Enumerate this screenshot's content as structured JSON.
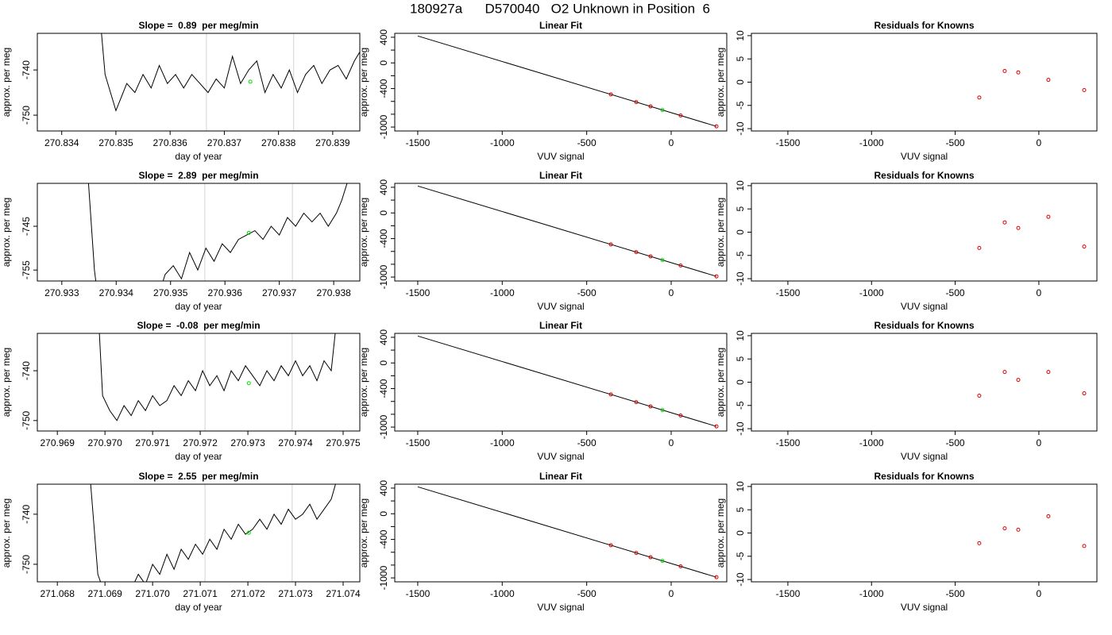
{
  "title": "180927a      D570040   O2 Unknown in Position  6",
  "chart_data": [
    {
      "type": "line",
      "title": "Slope =  0.89  per meg/min",
      "xlabel": "day of year",
      "ylabel": "approx. per meg",
      "xlim": [
        270.83355,
        270.8395
      ],
      "ylim": [
        -753.5,
        -731.9
      ],
      "xticks": [
        270.834,
        270.835,
        270.836,
        270.837,
        270.838,
        270.839
      ],
      "yticks": [
        -740,
        -750
      ],
      "vlines": [
        270.83667,
        270.83828
      ],
      "vline_color": "#d3d3d3",
      "series": [
        {
          "kind": "line",
          "color": "#000000",
          "x": [
            270.83472,
            270.8348,
            270.8349,
            270.835,
            270.8351,
            270.8352,
            270.83535,
            270.8355,
            270.83565,
            270.8358,
            270.83595,
            270.8361,
            270.83625,
            270.8364,
            270.83655,
            270.8367,
            270.83685,
            270.837,
            270.83715,
            270.8373,
            270.83745,
            270.8376,
            270.83775,
            270.8379,
            270.83805,
            270.8382,
            270.83835,
            270.8385,
            270.83865,
            270.8388,
            270.83895,
            270.8391,
            270.83925,
            270.8394,
            270.83955,
            270.83965
          ],
          "values": [
            -730,
            -741,
            -745,
            -749,
            -746,
            -743,
            -745,
            -741,
            -744,
            -739,
            -743,
            -741,
            -744,
            -741,
            -743,
            -745,
            -742,
            -744,
            -737,
            -743,
            -740,
            -738,
            -745,
            -741,
            -744,
            -740,
            -745,
            -741,
            -739,
            -743,
            -740,
            -739,
            -742,
            -738,
            -735,
            -728
          ]
        },
        {
          "kind": "points",
          "color": "#00dd00",
          "x": [
            270.83748
          ],
          "values": [
            -742.6
          ]
        }
      ]
    },
    {
      "type": "scatter",
      "title": "Linear Fit",
      "xlabel": "VUV signal",
      "ylabel": "approx. per meg",
      "xlim": [
        -1636,
        329
      ],
      "ylim": [
        -1061,
        461
      ],
      "xticks": [
        -1500,
        -1000,
        -500,
        0
      ],
      "yticks": [
        400,
        0,
        -400,
        -1000
      ],
      "yminor": [
        200,
        -200,
        -600,
        -800
      ],
      "series": [
        {
          "kind": "line",
          "color": "#000000",
          "x": [
            -1500,
            268
          ],
          "values": [
            420,
            -989
          ]
        },
        {
          "kind": "points",
          "color": "#dd0000",
          "x": [
            -357,
            -207,
            -122,
            56,
            268
          ],
          "values": [
            -491,
            -611,
            -678,
            -820,
            -989
          ]
        },
        {
          "kind": "points",
          "color": "#00dd00",
          "x": [
            -52
          ],
          "values": [
            -734
          ]
        }
      ]
    },
    {
      "type": "scatter",
      "title": "Residuals for Knowns",
      "xlabel": "VUV signal",
      "ylabel": "approx. per meg",
      "xlim": [
        -1718,
        347
      ],
      "ylim": [
        -10.5,
        10.5
      ],
      "xticks": [
        -1500,
        -1000,
        -500,
        0
      ],
      "yticks": [
        10,
        5,
        0,
        -5,
        -10
      ],
      "series": [
        {
          "kind": "points",
          "color": "#dd0000",
          "x": [
            -356,
            -204,
            -123,
            57,
            271
          ],
          "values": [
            -3.3,
            2.4,
            2.1,
            0.5,
            -1.7
          ]
        }
      ]
    },
    {
      "type": "line",
      "title": "Slope =  2.89  per meg/min",
      "xlabel": "day of year",
      "ylabel": "approx. per meg",
      "xlim": [
        270.93255,
        270.93848
      ],
      "ylim": [
        -757.5,
        -735.2
      ],
      "xticks": [
        270.933,
        270.934,
        270.935,
        270.936,
        270.937,
        270.938
      ],
      "yticks": [
        -745,
        -755
      ],
      "vlines": [
        270.93563,
        270.93724
      ],
      "vline_color": "#d3d3d3",
      "series": [
        {
          "kind": "line",
          "color": "#000000",
          "x": [
            270.93349,
            270.9336,
            270.93365,
            270.9348,
            270.9349,
            270.93505,
            270.9352,
            270.93535,
            270.9355,
            270.93565,
            270.9358,
            270.93595,
            270.9361,
            270.93625,
            270.9364,
            270.93655,
            270.9367,
            270.93685,
            270.937,
            270.93715,
            270.9373,
            270.93745,
            270.9376,
            270.93775,
            270.9379,
            270.93805,
            270.93815,
            270.9383
          ],
          "values": [
            -735,
            -755,
            -760,
            -760,
            -756,
            -754,
            -757,
            -751,
            -755,
            -750,
            -753,
            -749,
            -751,
            -748,
            -747,
            -746,
            -748,
            -745,
            -747,
            -743,
            -745,
            -742,
            -744,
            -742,
            -745,
            -742,
            -739,
            -733
          ]
        },
        {
          "kind": "points",
          "color": "#00dd00",
          "x": [
            270.93644
          ],
          "values": [
            -746.5
          ]
        }
      ]
    },
    {
      "type": "scatter",
      "title": "Linear Fit",
      "xlabel": "VUV signal",
      "ylabel": "approx. per meg",
      "xlim": [
        -1636,
        329
      ],
      "ylim": [
        -1061,
        461
      ],
      "xticks": [
        -1500,
        -1000,
        -500,
        0
      ],
      "yticks": [
        400,
        0,
        -400,
        -1000
      ],
      "yminor": [
        200,
        -200,
        -600,
        -800
      ],
      "series": [
        {
          "kind": "line",
          "color": "#000000",
          "x": [
            -1500,
            268
          ],
          "values": [
            420,
            -989
          ]
        },
        {
          "kind": "points",
          "color": "#dd0000",
          "x": [
            -357,
            -207,
            -122,
            56,
            268
          ],
          "values": [
            -491,
            -611,
            -678,
            -820,
            -989
          ]
        },
        {
          "kind": "points",
          "color": "#00dd00",
          "x": [
            -52
          ],
          "values": [
            -734
          ]
        }
      ]
    },
    {
      "type": "scatter",
      "title": "Residuals for Knowns",
      "xlabel": "VUV signal",
      "ylabel": "approx. per meg",
      "xlim": [
        -1718,
        347
      ],
      "ylim": [
        -10.5,
        10.5
      ],
      "xticks": [
        -1500,
        -1000,
        -500,
        0
      ],
      "yticks": [
        10,
        5,
        0,
        -5,
        -10
      ],
      "series": [
        {
          "kind": "points",
          "color": "#dd0000",
          "x": [
            -356,
            -204,
            -123,
            57,
            271
          ],
          "values": [
            -3.4,
            2.1,
            0.9,
            3.3,
            -3.1
          ]
        }
      ]
    },
    {
      "type": "line",
      "title": "Slope =  -0.08  per meg/min",
      "xlabel": "day of year",
      "ylabel": "approx. per meg",
      "xlim": [
        270.96858,
        270.97535
      ],
      "ylim": [
        -752.1,
        -732.5
      ],
      "xticks": [
        270.969,
        {
          "value": 270.97,
          "label": "270.970"
        },
        270.971,
        270.972,
        270.973,
        270.974,
        270.975
      ],
      "yticks": [
        -740,
        -750
      ],
      "vlines": [
        270.9721,
        270.97393
      ],
      "vline_color": "#d3d3d3",
      "series": [
        {
          "kind": "line",
          "color": "#000000",
          "x": [
            270.96988,
            270.96995,
            270.9701,
            270.97025,
            270.9704,
            270.97055,
            270.9707,
            270.97085,
            270.971,
            270.97115,
            270.9713,
            270.97145,
            270.9716,
            270.97175,
            270.9719,
            270.97205,
            270.9722,
            270.97235,
            270.9725,
            270.97265,
            270.9728,
            270.97295,
            270.9731,
            270.97325,
            270.9734,
            270.97355,
            270.9737,
            270.97385,
            270.974,
            270.97415,
            270.9743,
            270.97445,
            270.9746,
            270.97475,
            270.97485
          ],
          "values": [
            -732,
            -745,
            -748,
            -750,
            -747,
            -749,
            -746,
            -748,
            -745,
            -747,
            -746,
            -743,
            -745,
            -742,
            -744,
            -740,
            -743,
            -741,
            -744,
            -740,
            -742,
            -739,
            -741,
            -743,
            -740,
            -742,
            -739,
            -741,
            -738,
            -741,
            -739,
            -742,
            -738,
            -740,
            -731
          ]
        },
        {
          "kind": "points",
          "color": "#00dd00",
          "x": [
            270.97302
          ],
          "values": [
            -742.5
          ]
        }
      ]
    },
    {
      "type": "scatter",
      "title": "Linear Fit",
      "xlabel": "VUV signal",
      "ylabel": "approx. per meg",
      "xlim": [
        -1636,
        329
      ],
      "ylim": [
        -1061,
        461
      ],
      "xticks": [
        -1500,
        -1000,
        -500,
        0
      ],
      "yticks": [
        400,
        0,
        -400,
        -1000
      ],
      "yminor": [
        200,
        -200,
        -600,
        -800
      ],
      "series": [
        {
          "kind": "line",
          "color": "#000000",
          "x": [
            -1500,
            268
          ],
          "values": [
            420,
            -989
          ]
        },
        {
          "kind": "points",
          "color": "#dd0000",
          "x": [
            -357,
            -207,
            -122,
            56,
            268
          ],
          "values": [
            -491,
            -611,
            -678,
            -820,
            -989
          ]
        },
        {
          "kind": "points",
          "color": "#00dd00",
          "x": [
            -52
          ],
          "values": [
            -734
          ]
        }
      ]
    },
    {
      "type": "scatter",
      "title": "Residuals for Knowns",
      "xlabel": "VUV signal",
      "ylabel": "approx. per meg",
      "xlim": [
        -1718,
        347
      ],
      "ylim": [
        -10.5,
        10.5
      ],
      "xticks": [
        -1500,
        -1000,
        -500,
        0
      ],
      "yticks": [
        10,
        5,
        0,
        -5,
        -10
      ],
      "series": [
        {
          "kind": "points",
          "color": "#dd0000",
          "x": [
            -356,
            -204,
            -123,
            57,
            271
          ],
          "values": [
            -2.9,
            2.2,
            0.5,
            2.2,
            -2.4
          ]
        }
      ]
    },
    {
      "type": "line",
      "title": "Slope =  2.55  per meg/min",
      "xlabel": "day of year",
      "ylabel": "approx. per meg",
      "xlim": [
        271.06758,
        271.07435
      ],
      "ylim": [
        -753.5,
        -734
      ],
      "xticks": [
        271.068,
        271.069,
        {
          "value": 271.07,
          "label": "271.070"
        },
        271.071,
        271.072,
        271.073,
        271.074
      ],
      "yticks": [
        -740,
        -750
      ],
      "vlines": [
        271.0711,
        271.07293
      ],
      "vline_color": "#d3d3d3",
      "series": [
        {
          "kind": "line",
          "color": "#000000",
          "x": [
            271.0687,
            271.06885,
            271.069,
            271.0695,
            271.0697,
            271.06985,
            271.07,
            271.07015,
            271.0703,
            271.07045,
            271.0706,
            271.07075,
            271.0709,
            271.07105,
            271.0712,
            271.07135,
            271.0715,
            271.07165,
            271.0718,
            271.07195,
            271.0721,
            271.07225,
            271.0724,
            271.07255,
            271.0727,
            271.07285,
            271.073,
            271.07315,
            271.0733,
            271.07345,
            271.0736,
            271.07375,
            271.0739
          ],
          "values": [
            -734,
            -752,
            -756,
            -756,
            -752,
            -754,
            -750,
            -752,
            -748,
            -751,
            -747,
            -749,
            -746,
            -748,
            -745,
            -747,
            -743,
            -745,
            -742,
            -744,
            -743,
            -741,
            -743,
            -740,
            -742,
            -739,
            -741,
            -740,
            -738,
            -741,
            -739,
            -737,
            -732
          ]
        },
        {
          "kind": "points",
          "color": "#00dd00",
          "x": [
            271.07202
          ],
          "values": [
            -743.7
          ]
        }
      ]
    },
    {
      "type": "scatter",
      "title": "Linear Fit",
      "xlabel": "VUV signal",
      "ylabel": "approx. per meg",
      "xlim": [
        -1636,
        329
      ],
      "ylim": [
        -1061,
        461
      ],
      "xticks": [
        -1500,
        -1000,
        -500,
        0
      ],
      "yticks": [
        400,
        0,
        -400,
        -1000
      ],
      "yminor": [
        200,
        -200,
        -600,
        -800
      ],
      "series": [
        {
          "kind": "line",
          "color": "#000000",
          "x": [
            -1500,
            268
          ],
          "values": [
            420,
            -989
          ]
        },
        {
          "kind": "points",
          "color": "#dd0000",
          "x": [
            -357,
            -207,
            -122,
            56,
            268
          ],
          "values": [
            -491,
            -611,
            -678,
            -820,
            -989
          ]
        },
        {
          "kind": "points",
          "color": "#00dd00",
          "x": [
            -52
          ],
          "values": [
            -734
          ]
        }
      ]
    },
    {
      "type": "scatter",
      "title": "Residuals for Knowns",
      "xlabel": "VUV signal",
      "ylabel": "approx. per meg",
      "xlim": [
        -1718,
        347
      ],
      "ylim": [
        -10.5,
        10.5
      ],
      "xticks": [
        -1500,
        -1000,
        -500,
        0
      ],
      "yticks": [
        10,
        5,
        0,
        -5,
        -10
      ],
      "series": [
        {
          "kind": "points",
          "color": "#dd0000",
          "x": [
            -356,
            -204,
            -123,
            57,
            271
          ],
          "values": [
            -2.2,
            1.0,
            0.7,
            3.6,
            -2.8
          ]
        }
      ]
    }
  ]
}
